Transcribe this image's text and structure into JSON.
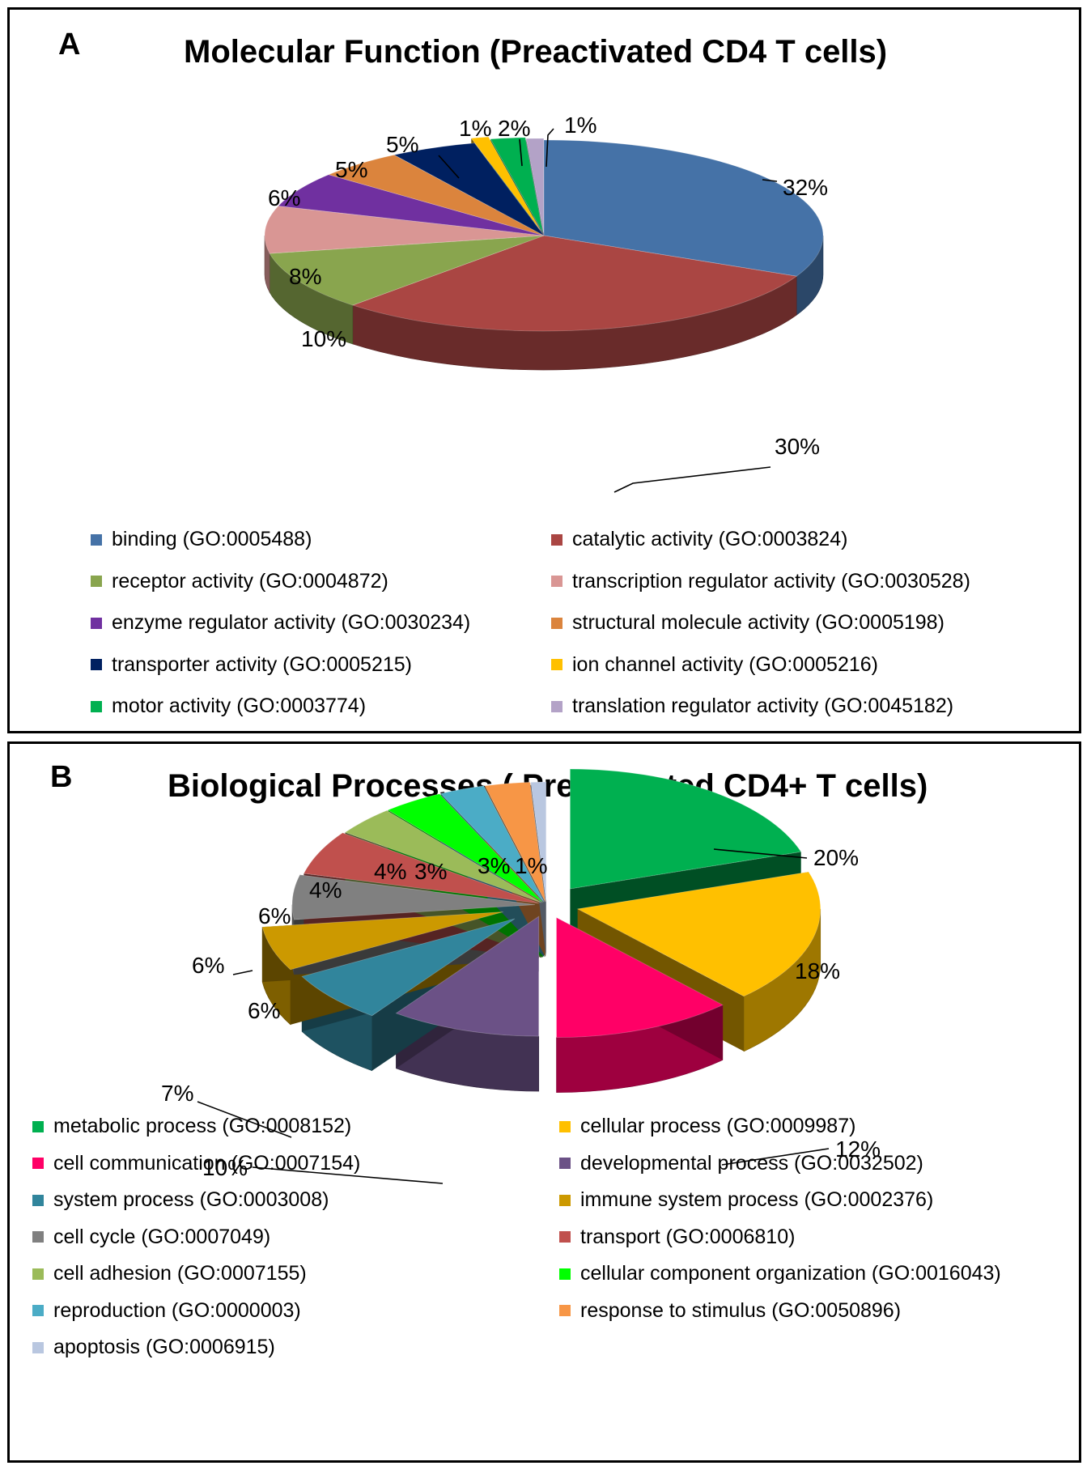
{
  "chart_data": [
    {
      "type": "pie",
      "panel_letter": "A",
      "title": "Molecular Function (Preactivated CD4 T cells)",
      "legend_placement": "bottom",
      "slices": [
        {
          "label": "binding (GO:0005488)",
          "value": 32,
          "value_label": "32%",
          "color": "#4572A7"
        },
        {
          "label": "catalytic activity (GO:0003824)",
          "value": 30,
          "value_label": "30%",
          "color": "#AA4643"
        },
        {
          "label": "receptor activity (GO:0004872)",
          "value": 10,
          "value_label": "10%",
          "color": "#89A54E"
        },
        {
          "label": "transcription regulator activity (GO:0030528)",
          "value": 8,
          "value_label": "8%",
          "color": "#D99694"
        },
        {
          "label": "enzyme regulator activity (GO:0030234)",
          "value": 6,
          "value_label": "6%",
          "color": "#7030A0"
        },
        {
          "label": "structural molecule activity (GO:0005198)",
          "value": 5,
          "value_label": "5%",
          "color": "#DB843D"
        },
        {
          "label": "transporter activity (GO:0005215)",
          "value": 5,
          "value_label": "5%",
          "color": "#002060"
        },
        {
          "label": "ion channel activity (GO:0005216)",
          "value": 1,
          "value_label": "1%",
          "color": "#FFC000"
        },
        {
          "label": "motor activity (GO:0003774)",
          "value": 2,
          "value_label": "2%",
          "color": "#00B050"
        },
        {
          "label": "translation regulator activity (GO:0045182)",
          "value": 1,
          "value_label": "1%",
          "color": "#B3A2C7"
        }
      ]
    },
    {
      "type": "pie",
      "panel_letter": "B",
      "title": "Biological Processes ( Preactivated CD4+ T cells)",
      "legend_placement": "bottom",
      "slices": [
        {
          "label": "metabolic process (GO:0008152)",
          "value": 20,
          "value_label": "20%",
          "color": "#00B050"
        },
        {
          "label": "cellular process (GO:0009987)",
          "value": 18,
          "value_label": "18%",
          "color": "#FFC000"
        },
        {
          "label": "cell communication (GO:0007154)",
          "value": 12,
          "value_label": "12%",
          "color": "#FF0066"
        },
        {
          "label": "developmental process (GO:0032502)",
          "value": 10,
          "value_label": "10%",
          "color": "#6B5186"
        },
        {
          "label": "system process (GO:0003008)",
          "value": 7,
          "value_label": "7%",
          "color": "#31859C"
        },
        {
          "label": "immune system process (GO:0002376)",
          "value": 6,
          "value_label": "6%",
          "color": "#CC9900"
        },
        {
          "label": "cell cycle (GO:0007049)",
          "value": 6,
          "value_label": "6%",
          "color": "#808080"
        },
        {
          "label": "transport (GO:0006810)",
          "value": 6,
          "value_label": "6%",
          "color": "#C0504D"
        },
        {
          "label": "cell adhesion (GO:0007155)",
          "value": 4,
          "value_label": "4%",
          "color": "#9BBB59"
        },
        {
          "label": "cellular component organization (GO:0016043)",
          "value": 4,
          "value_label": "4%",
          "color": "#00FF00"
        },
        {
          "label": "reproduction (GO:0000003)",
          "value": 3,
          "value_label": "3%",
          "color": "#4BACC6"
        },
        {
          "label": "response to stimulus (GO:0050896)",
          "value": 3,
          "value_label": "3%",
          "color": "#F79646"
        },
        {
          "label": "apoptosis (GO:0006915)",
          "value": 1,
          "value_label": "1%",
          "color": "#B9C7E0"
        }
      ]
    }
  ]
}
